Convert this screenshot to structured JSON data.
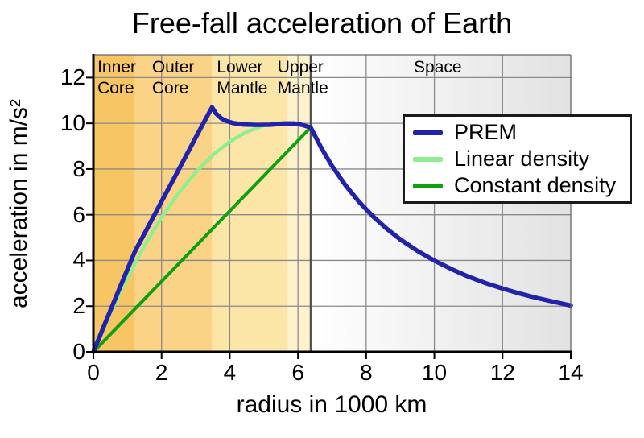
{
  "title": "Free-fall acceleration of Earth",
  "chart_data": {
    "type": "line",
    "title": "Free-fall acceleration of Earth",
    "xlabel": "radius in 1000 km",
    "ylabel": "acceleration in m/s²",
    "xlim": [
      0,
      14
    ],
    "ylim": [
      0,
      13
    ],
    "x_ticks": [
      0,
      2,
      4,
      6,
      8,
      10,
      12,
      14
    ],
    "y_ticks": [
      0,
      2,
      4,
      6,
      8,
      10,
      12
    ],
    "grid": true,
    "gridline_color": "#8a8a8a",
    "legend_position": "upper right",
    "earth_surface_radius": 6.371,
    "surface_line_color": "#4f4f4f",
    "regions": [
      {
        "name": "inner-core",
        "line1": "Inner",
        "line2": "Core",
        "from": 0,
        "to": 1.2215,
        "color": "#f8c565",
        "label_u": 0.12,
        "align": "left"
      },
      {
        "name": "outer-core",
        "line1": "Outer",
        "line2": "Core",
        "from": 1.2215,
        "to": 3.48,
        "color": "#fad387",
        "label_u": 1.72,
        "align": "left"
      },
      {
        "name": "lower-mantle",
        "line1": "Lower",
        "line2": "Mantle",
        "from": 3.48,
        "to": 5.7,
        "color": "#fce6a7",
        "label_u": 3.62,
        "align": "left"
      },
      {
        "name": "upper-mantle",
        "line1": "Upper",
        "line2": "Mantle",
        "from": 5.7,
        "to": 6.371,
        "color": "#fdf2cb",
        "label_u": 5.4,
        "align": "left"
      },
      {
        "name": "space",
        "line1": "Space",
        "line2": "",
        "from": 6.371,
        "to": 14,
        "color": "gradient:#ffffff,#e2e2e2",
        "label_u": 10.1,
        "align": "center"
      }
    ],
    "series": [
      {
        "name": "Linear density",
        "color": "#90ee90",
        "width": 4.5,
        "points": [
          [
            0,
            0
          ],
          [
            0.5,
            1.71
          ],
          [
            1.0,
            3.26
          ],
          [
            1.5,
            4.65
          ],
          [
            2.0,
            5.88
          ],
          [
            2.5,
            6.95
          ],
          [
            3.0,
            7.86
          ],
          [
            3.5,
            8.61
          ],
          [
            4.0,
            9.2
          ],
          [
            4.5,
            9.63
          ],
          [
            5.0,
            9.91
          ],
          [
            5.5,
            10.02
          ],
          [
            6.0,
            9.97
          ],
          [
            6.371,
            9.82
          ]
        ]
      },
      {
        "name": "Constant density",
        "color": "#0ea00e",
        "width": 4,
        "points": [
          [
            0,
            0
          ],
          [
            6.371,
            9.82
          ]
        ]
      },
      {
        "name": "PREM",
        "color": "#2222aa",
        "width": 5.5,
        "points": [
          [
            0,
            0
          ],
          [
            0.4,
            1.45
          ],
          [
            0.8,
            2.9
          ],
          [
            1.2215,
            4.4
          ],
          [
            1.6,
            5.46
          ],
          [
            2.0,
            6.58
          ],
          [
            2.4,
            7.69
          ],
          [
            2.8,
            8.81
          ],
          [
            3.2,
            9.93
          ],
          [
            3.48,
            10.7
          ],
          [
            3.6,
            10.42
          ],
          [
            3.75,
            10.22
          ],
          [
            3.9,
            10.1
          ],
          [
            4.1,
            10.01
          ],
          [
            4.4,
            9.95
          ],
          [
            4.8,
            9.93
          ],
          [
            5.2,
            9.94
          ],
          [
            5.6,
            9.99
          ],
          [
            5.9,
            9.99
          ],
          [
            6.1,
            9.94
          ],
          [
            6.371,
            9.82
          ],
          [
            6.7,
            8.88
          ],
          [
            7.0,
            8.13
          ],
          [
            7.4,
            7.28
          ],
          [
            7.8,
            6.55
          ],
          [
            8.2,
            5.93
          ],
          [
            8.6,
            5.39
          ],
          [
            9.0,
            4.92
          ],
          [
            9.5,
            4.42
          ],
          [
            10.0,
            3.99
          ],
          [
            10.5,
            3.62
          ],
          [
            11.0,
            3.29
          ],
          [
            11.5,
            3.01
          ],
          [
            12.0,
            2.77
          ],
          [
            12.5,
            2.55
          ],
          [
            13.0,
            2.36
          ],
          [
            13.5,
            2.19
          ],
          [
            14.0,
            2.03
          ]
        ]
      }
    ]
  },
  "legend": {
    "entries": [
      {
        "label": "PREM",
        "color": "#2222aa"
      },
      {
        "label": "Linear density",
        "color": "#90ee90"
      },
      {
        "label": "Constant density",
        "color": "#0ea00e"
      }
    ]
  }
}
